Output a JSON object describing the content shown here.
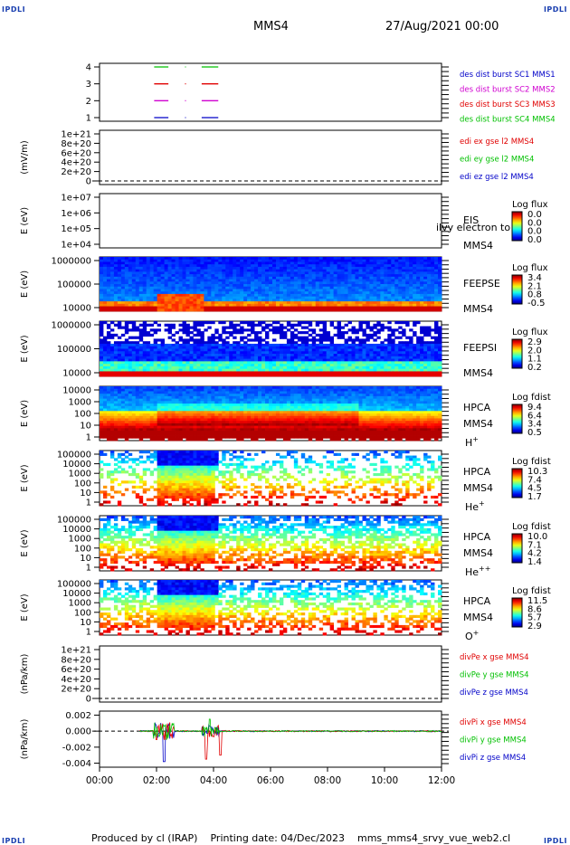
{
  "corners": {
    "top_left": "IPDLI",
    "top_right": "IPDLI",
    "bottom_left": "IPDLI",
    "bottom_right": "IPDLI"
  },
  "header": {
    "spacecraft": "MMS4",
    "date": "27/Aug/2021 00:00"
  },
  "footer": {
    "produced_by": "Produced by cl (IRAP)",
    "printing_date": "Printing date: 04/Dec/2023",
    "file": "mms_mms4_srvy_vue_web2.cl"
  },
  "colors": {
    "red": "#e00000",
    "green": "#00c000",
    "blue": "#0000c8",
    "magenta": "#d000d0"
  },
  "chart_data": {
    "type": "heatmap",
    "x_ticks": [
      "00:00",
      "02:00",
      "04:00",
      "06:00",
      "08:00",
      "10:00",
      "12:00"
    ],
    "panels": [
      {
        "id": "burst",
        "type": "line",
        "yticks": [
          "4",
          "3",
          "2",
          "1"
        ],
        "legend": [
          {
            "text": "des dist burst SC1 MMS1",
            "color": "#0000c8"
          },
          {
            "text": "des dist burst SC2 MMS2",
            "color": "#d000d0"
          },
          {
            "text": "des dist burst SC3 MMS3",
            "color": "#e00000"
          },
          {
            "text": "des dist burst SC4 MMS4",
            "color": "#00c000"
          }
        ],
        "intervals": [
          {
            "sc": 4,
            "start": "01:55",
            "end": "02:25"
          },
          {
            "sc": 4,
            "start": "03:35",
            "end": "04:10"
          },
          {
            "sc": 3,
            "start": "01:55",
            "end": "02:25"
          },
          {
            "sc": 3,
            "start": "03:35",
            "end": "04:10"
          },
          {
            "sc": 2,
            "start": "01:55",
            "end": "02:25"
          },
          {
            "sc": 2,
            "start": "03:35",
            "end": "04:10"
          },
          {
            "sc": 1,
            "start": "01:55",
            "end": "02:25"
          },
          {
            "sc": 1,
            "start": "03:35",
            "end": "04:10"
          }
        ]
      },
      {
        "id": "edi",
        "type": "line",
        "ylabel": "(mV/m)",
        "yticks": [
          "1e+21",
          "8e+20",
          "6e+20",
          "4e+20",
          "2e+20",
          "0"
        ],
        "legend": [
          {
            "text": "edi ex gse l2 MMS4",
            "color": "#e00000"
          },
          {
            "text": "edi ey gse l2 MMS4",
            "color": "#00c000"
          },
          {
            "text": "edi ez gse l2 MMS4",
            "color": "#0000c8"
          }
        ]
      },
      {
        "id": "eis",
        "type": "heatmap",
        "ylabel": "E (eV)",
        "yticks": [
          "1e+07",
          "1e+06",
          "1e+05",
          "1e+04"
        ],
        "right_labels": [
          "EIS",
          "MMS4"
        ],
        "overlay_text": "ilvy electron to",
        "cbar_title": "Log flux",
        "cbar_ticks": [
          "0.0",
          "0.0",
          "0.0",
          "0.0"
        ]
      },
      {
        "id": "feepse",
        "type": "heatmap",
        "ylabel": "E (eV)",
        "yticks": [
          "1000000",
          "100000",
          "10000"
        ],
        "right_labels": [
          "FEEPSE",
          "MMS4"
        ],
        "cbar_title": "Log flux",
        "cbar_ticks": [
          "3.4",
          "2.1",
          "0.8",
          "-0.5"
        ]
      },
      {
        "id": "feepsi",
        "type": "heatmap",
        "ylabel": "E (eV)",
        "yticks": [
          "1000000",
          "100000",
          "10000"
        ],
        "right_labels": [
          "FEEPSI",
          "MMS4"
        ],
        "cbar_title": "Log flux",
        "cbar_ticks": [
          "2.9",
          "2.0",
          "1.1",
          "0.2"
        ]
      },
      {
        "id": "hpca_h",
        "type": "heatmap",
        "ylabel": "E (eV)",
        "yticks": [
          "10000",
          "1000",
          "100",
          "10",
          "1"
        ],
        "right_labels": [
          "HPCA",
          "MMS4"
        ],
        "species": "H",
        "charge": "+",
        "cbar_title": "Log fdist",
        "cbar_ticks": [
          "9.4",
          "6.4",
          "3.4",
          "0.5"
        ]
      },
      {
        "id": "hpca_he1",
        "type": "heatmap",
        "ylabel": "E (eV)",
        "yticks": [
          "100000",
          "10000",
          "1000",
          "100",
          "10",
          "1"
        ],
        "right_labels": [
          "HPCA",
          "MMS4"
        ],
        "species": "He",
        "charge": "+",
        "cbar_title": "Log fdist",
        "cbar_ticks": [
          "10.3",
          "7.4",
          "4.5",
          "1.7"
        ]
      },
      {
        "id": "hpca_he2",
        "type": "heatmap",
        "ylabel": "E (eV)",
        "yticks": [
          "100000",
          "10000",
          "1000",
          "100",
          "10",
          "1"
        ],
        "right_labels": [
          "HPCA",
          "MMS4"
        ],
        "species": "He",
        "charge": "++",
        "cbar_title": "Log fdist",
        "cbar_ticks": [
          "10.0",
          "7.1",
          "4.2",
          "1.4"
        ]
      },
      {
        "id": "hpca_o",
        "type": "heatmap",
        "ylabel": "E (eV)",
        "yticks": [
          "100000",
          "10000",
          "1000",
          "100",
          "10",
          "1"
        ],
        "right_labels": [
          "HPCA",
          "MMS4"
        ],
        "species": "O",
        "charge": "+",
        "cbar_title": "Log fdist",
        "cbar_ticks": [
          "11.5",
          "8.6",
          "5.7",
          "2.9"
        ]
      },
      {
        "id": "divpe",
        "type": "line",
        "ylabel": "(nPa/km)",
        "yticks": [
          "1e+21",
          "8e+20",
          "6e+20",
          "4e+20",
          "2e+20",
          "0"
        ],
        "legend": [
          {
            "text": "divPe x gse MMS4",
            "color": "#e00000"
          },
          {
            "text": "divPe y gse MMS4",
            "color": "#00c000"
          },
          {
            "text": "divPe z gse MMS4",
            "color": "#0000c8"
          }
        ]
      },
      {
        "id": "divpi",
        "type": "line",
        "ylabel": "(nPa/km)",
        "yticks": [
          "0.002",
          "0.000",
          "-0.002",
          "-0.004"
        ],
        "ylim": [
          -0.0045,
          0.0025
        ],
        "legend": [
          {
            "text": "divPi x gse MMS4",
            "color": "#e00000"
          },
          {
            "text": "divPi y gse MMS4",
            "color": "#00c000"
          },
          {
            "text": "divPi z gse MMS4",
            "color": "#0000c8"
          }
        ]
      }
    ]
  }
}
